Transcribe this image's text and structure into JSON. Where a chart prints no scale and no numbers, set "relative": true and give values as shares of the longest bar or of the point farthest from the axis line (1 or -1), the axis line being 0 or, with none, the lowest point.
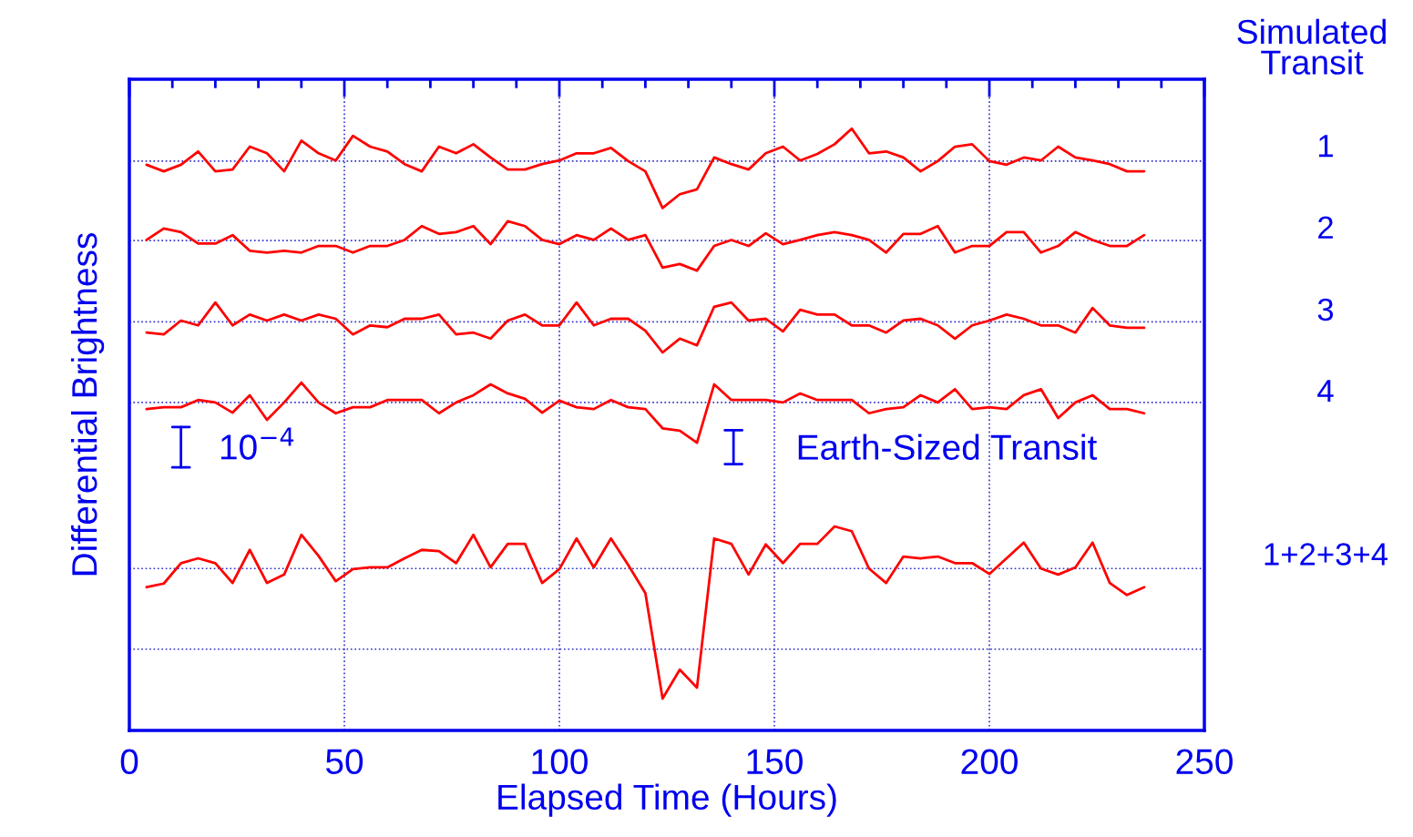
{
  "chart_data": {
    "type": "line",
    "relative": true,
    "xlabel": "Elapsed Time (Hours)",
    "ylabel": "Differential Brightness",
    "legend_title": "Simulated Transit",
    "xlim": [
      0,
      250
    ],
    "xticks": [
      0,
      50,
      100,
      150,
      200,
      250
    ],
    "grid": "x",
    "legend": false,
    "marker": "none",
    "line_style": "solid",
    "x": [
      4,
      8,
      12,
      16,
      20,
      24,
      28,
      32,
      36,
      40,
      44,
      48,
      52,
      56,
      60,
      64,
      68,
      72,
      76,
      80,
      84,
      88,
      92,
      96,
      100,
      104,
      108,
      112,
      116,
      120,
      124,
      128,
      132,
      136,
      140,
      144,
      148,
      152,
      156,
      160,
      164,
      168,
      172,
      176,
      180,
      184,
      188,
      192,
      196,
      200,
      204,
      208,
      212,
      216,
      220,
      224,
      228,
      232,
      236
    ],
    "series": [
      {
        "name": "1",
        "color": "#ff0000",
        "values": [
          0.94,
          0.929,
          0.94,
          0.962,
          0.929,
          0.932,
          0.97,
          0.959,
          0.929,
          0.98,
          0.959,
          0.947,
          0.988,
          0.97,
          0.962,
          0.941,
          0.929,
          0.97,
          0.959,
          0.974,
          0.952,
          0.932,
          0.932,
          0.941,
          0.947,
          0.959,
          0.959,
          0.968,
          0.946,
          0.929,
          0.868,
          0.891,
          0.899,
          0.952,
          0.941,
          0.932,
          0.959,
          0.97,
          0.947,
          0.958,
          0.974,
          1.0,
          0.959,
          0.962,
          0.952,
          0.929,
          0.946,
          0.97,
          0.974,
          0.946,
          0.94,
          0.952,
          0.947,
          0.97,
          0.952,
          0.947,
          0.941,
          0.929,
          0.929
        ]
      },
      {
        "name": "2",
        "color": "#ff0000",
        "values": [
          0.815,
          0.834,
          0.828,
          0.809,
          0.809,
          0.823,
          0.797,
          0.794,
          0.797,
          0.794,
          0.805,
          0.805,
          0.794,
          0.805,
          0.805,
          0.815,
          0.838,
          0.825,
          0.828,
          0.838,
          0.808,
          0.846,
          0.838,
          0.815,
          0.808,
          0.823,
          0.815,
          0.834,
          0.815,
          0.823,
          0.769,
          0.775,
          0.764,
          0.805,
          0.815,
          0.805,
          0.826,
          0.808,
          0.815,
          0.823,
          0.828,
          0.823,
          0.815,
          0.794,
          0.825,
          0.825,
          0.838,
          0.794,
          0.805,
          0.805,
          0.828,
          0.828,
          0.794,
          0.805,
          0.828,
          0.815,
          0.805,
          0.805,
          0.823
        ]
      },
      {
        "name": "3",
        "color": "#ff0000",
        "values": [
          0.661,
          0.658,
          0.681,
          0.673,
          0.711,
          0.673,
          0.691,
          0.681,
          0.691,
          0.681,
          0.691,
          0.684,
          0.658,
          0.673,
          0.67,
          0.684,
          0.684,
          0.691,
          0.658,
          0.661,
          0.651,
          0.681,
          0.691,
          0.673,
          0.673,
          0.711,
          0.673,
          0.684,
          0.684,
          0.664,
          0.628,
          0.651,
          0.64,
          0.704,
          0.711,
          0.681,
          0.684,
          0.663,
          0.699,
          0.691,
          0.691,
          0.673,
          0.673,
          0.661,
          0.681,
          0.684,
          0.673,
          0.651,
          0.673,
          0.681,
          0.691,
          0.684,
          0.673,
          0.673,
          0.661,
          0.702,
          0.673,
          0.669,
          0.669
        ]
      },
      {
        "name": "4",
        "color": "#ff0000",
        "values": [
          0.534,
          0.537,
          0.537,
          0.549,
          0.545,
          0.528,
          0.557,
          0.516,
          0.545,
          0.578,
          0.545,
          0.527,
          0.537,
          0.537,
          0.549,
          0.549,
          0.549,
          0.527,
          0.545,
          0.557,
          0.575,
          0.56,
          0.551,
          0.528,
          0.548,
          0.537,
          0.534,
          0.549,
          0.537,
          0.534,
          0.502,
          0.498,
          0.478,
          0.575,
          0.549,
          0.549,
          0.549,
          0.545,
          0.56,
          0.549,
          0.549,
          0.549,
          0.527,
          0.534,
          0.537,
          0.557,
          0.545,
          0.567,
          0.534,
          0.537,
          0.534,
          0.557,
          0.567,
          0.519,
          0.545,
          0.557,
          0.534,
          0.534,
          0.527
        ]
      },
      {
        "name": "1+2+3+4",
        "color": "#ff0000",
        "values": [
          0.238,
          0.244,
          0.278,
          0.286,
          0.278,
          0.245,
          0.3,
          0.245,
          0.259,
          0.325,
          0.29,
          0.248,
          0.268,
          0.271,
          0.271,
          0.286,
          0.3,
          0.298,
          0.278,
          0.325,
          0.271,
          0.31,
          0.31,
          0.245,
          0.268,
          0.319,
          0.271,
          0.319,
          0.275,
          0.228,
          0.053,
          0.101,
          0.071,
          0.319,
          0.31,
          0.259,
          0.309,
          0.278,
          0.31,
          0.31,
          0.339,
          0.331,
          0.269,
          0.245,
          0.289,
          0.286,
          0.289,
          0.278,
          0.278,
          0.26,
          0.286,
          0.312,
          0.269,
          0.259,
          0.271,
          0.312,
          0.245,
          0.225,
          0.238
        ]
      }
    ],
    "ref_lines": [
      {
        "axis": "y",
        "value": 0.946,
        "color": "#3333cc",
        "line_style": "dotted"
      },
      {
        "axis": "y",
        "value": 0.814,
        "color": "#3333cc",
        "line_style": "dotted"
      },
      {
        "axis": "y",
        "value": 0.679,
        "color": "#3333cc",
        "line_style": "dotted"
      },
      {
        "axis": "y",
        "value": 0.545,
        "color": "#3333cc",
        "line_style": "dotted"
      },
      {
        "axis": "y",
        "value": 0.269,
        "color": "#3333cc",
        "line_style": "dotted"
      },
      {
        "axis": "y",
        "value": 0.135,
        "color": "#3333cc",
        "line_style": "dotted"
      }
    ],
    "annotations": [
      "10$^{−4}$",
      "Earth-Sized Transit"
    ]
  }
}
